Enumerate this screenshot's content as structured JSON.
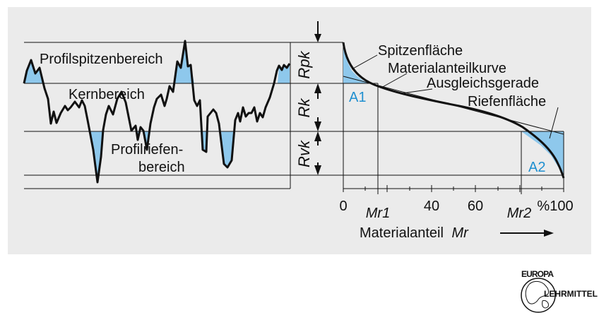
{
  "labels": {
    "profilspitzenbereich": "Profilspitzenbereich",
    "kernbereich": "Kernbereich",
    "profilriefen_line1": "Profilriefen-",
    "profilriefen_line2": "bereich",
    "rpk": "Rpk",
    "rk": "Rk",
    "rvk": "Rvk",
    "spitzenflaeche": "Spitzenfläche",
    "materialanteilkurve": "Materialanteilkurve",
    "ausgleichsgerade": "Ausgleichsgerade",
    "riefenflaeche": "Riefenfläche",
    "a1": "A1",
    "a2": "A2"
  },
  "axis": {
    "ticks": [
      "0",
      "40",
      "60",
      "%100"
    ],
    "mr1": "Mr1",
    "mr2": "Mr2",
    "title_text": "Materialanteil",
    "title_var": "Mr"
  },
  "logo": {
    "top": "EUROPA",
    "right": "LEHRMITTEL"
  },
  "colors": {
    "background": "#ebebeb",
    "fill_blue": "#8ec8ec",
    "label_blue": "#1f8fd0",
    "line": "#111111"
  }
}
